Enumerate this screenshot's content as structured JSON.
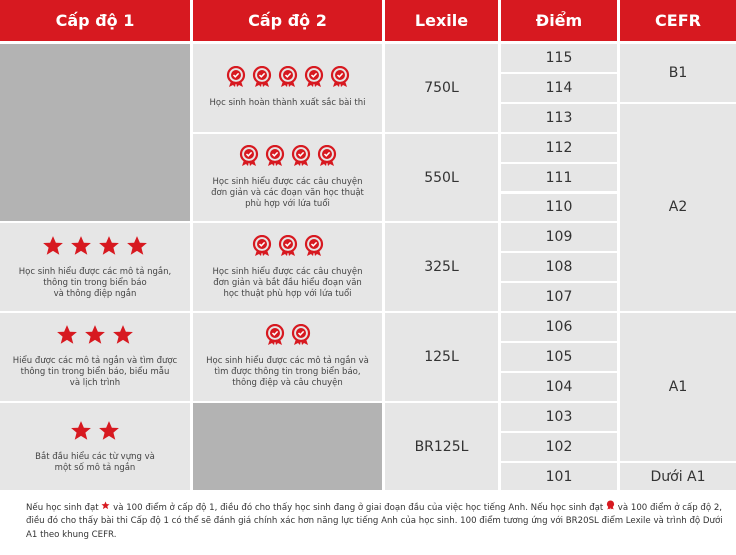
{
  "header": [
    "Cấp độ 1",
    "Cấp độ 2",
    "Lexile",
    "Điểm",
    "CEFR"
  ],
  "level1": [
    "Học sinh hiểu được các mô tả ngắn,\nthông tin trong biển báo\nvà thông điệp ngắn",
    "Hiểu được các mô tả ngắn và tìm được\nthông tin trong biển báo, biểu mẫu\nvà lịch trình",
    "Bắt đầu hiểu các từ vựng và\nmột số mô tả ngắn"
  ],
  "level2": [
    "Học sinh hoàn thành xuất sắc bài thi",
    "Học sinh hiểu được các câu chuyện\nđơn giản và các đoạn văn học thuật\nphù hợp với lứa tuổi",
    "Học sinh hiểu được các câu chuyện\nđơn giản và bắt đầu hiểu đoạn văn\nhọc thuật phù hợp với lứa tuổi",
    "Học sinh hiểu được các mô tả ngắn và\ntìm được thông tin trong biển báo,\nthông điệp và câu chuyện"
  ],
  "lexile": [
    "750L",
    "550L",
    "325L",
    "125L",
    "BR125L"
  ],
  "scores": [
    115,
    114,
    113,
    112,
    111,
    110,
    109,
    108,
    107,
    106,
    105,
    104,
    103,
    102,
    101
  ],
  "cefr": [
    "B1",
    "A2",
    "A1",
    "Dưới A1"
  ],
  "footer": {
    "parts": [
      "Nếu học sinh đạt",
      "và 100 điểm ở cấp độ 1, điều đó cho thấy học sinh đang ở giai đoạn đầu của việc học tiếng Anh. Nếu học sinh đạt",
      "và 100 điểm ở cấp độ 2, điều đó cho thấy bài thi Cấp độ 1 có thể sẽ đánh giá chính xác hơn năng lực tiếng Anh của học sinh. 100 điểm tương ứng với BR20SL điểm Lexile và trình độ Dưới A1 theo khung CEFR."
    ]
  }
}
